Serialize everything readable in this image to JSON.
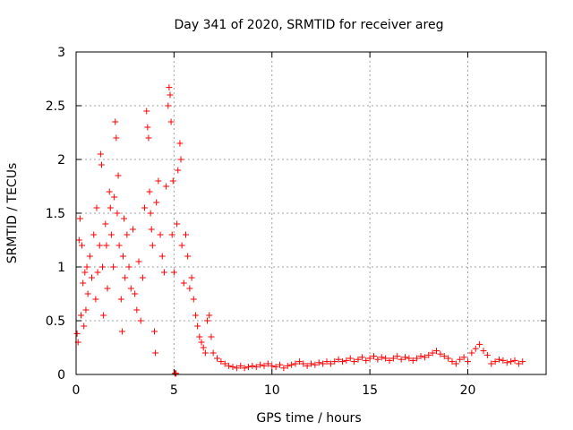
{
  "chart_data": {
    "type": "scatter",
    "title": "Day 341 of 2020, SRMTID for receiver areg",
    "xlabel": "GPS time / hours",
    "ylabel": "SRMTID / TECUs",
    "xlim": [
      0,
      24
    ],
    "ylim": [
      0,
      3
    ],
    "xticks": [
      0,
      5,
      10,
      15,
      20
    ],
    "yticks": [
      0,
      0.5,
      1,
      1.5,
      2,
      2.5,
      3
    ],
    "xtick_labels": [
      "0",
      "5",
      "10",
      "15",
      "20"
    ],
    "ytick_labels": [
      "0",
      "0.5",
      "1",
      "1.5",
      "2",
      "2.5",
      "3"
    ],
    "grid": true,
    "legend": "none",
    "series": [
      {
        "name": "SRMTID",
        "marker": "+",
        "color": "#ff0000",
        "points": [
          [
            0.05,
            0.38
          ],
          [
            0.1,
            0.3
          ],
          [
            0.15,
            1.25
          ],
          [
            0.2,
            1.45
          ],
          [
            0.25,
            0.55
          ],
          [
            0.3,
            1.2
          ],
          [
            0.35,
            0.85
          ],
          [
            0.4,
            0.45
          ],
          [
            0.45,
            0.95
          ],
          [
            0.5,
            0.6
          ],
          [
            0.55,
            1.0
          ],
          [
            0.6,
            0.75
          ],
          [
            0.7,
            1.1
          ],
          [
            0.8,
            0.9
          ],
          [
            0.9,
            1.3
          ],
          [
            1.0,
            0.7
          ],
          [
            1.05,
            1.55
          ],
          [
            1.1,
            0.95
          ],
          [
            1.2,
            1.2
          ],
          [
            1.25,
            2.05
          ],
          [
            1.3,
            1.95
          ],
          [
            1.35,
            1.0
          ],
          [
            1.4,
            0.55
          ],
          [
            1.5,
            1.4
          ],
          [
            1.55,
            1.2
          ],
          [
            1.6,
            0.8
          ],
          [
            1.7,
            1.7
          ],
          [
            1.75,
            1.55
          ],
          [
            1.8,
            1.3
          ],
          [
            1.9,
            1.0
          ],
          [
            1.95,
            1.65
          ],
          [
            2.0,
            2.35
          ],
          [
            2.05,
            2.2
          ],
          [
            2.1,
            1.5
          ],
          [
            2.15,
            1.85
          ],
          [
            2.2,
            1.2
          ],
          [
            2.3,
            0.7
          ],
          [
            2.35,
            0.4
          ],
          [
            2.4,
            1.1
          ],
          [
            2.45,
            1.45
          ],
          [
            2.5,
            0.9
          ],
          [
            2.6,
            1.3
          ],
          [
            2.7,
            1.0
          ],
          [
            2.8,
            0.8
          ],
          [
            2.9,
            1.35
          ],
          [
            3.0,
            0.75
          ],
          [
            3.1,
            0.6
          ],
          [
            3.2,
            1.05
          ],
          [
            3.3,
            0.5
          ],
          [
            3.4,
            0.9
          ],
          [
            3.5,
            1.55
          ],
          [
            3.6,
            2.45
          ],
          [
            3.65,
            2.3
          ],
          [
            3.7,
            2.2
          ],
          [
            3.75,
            1.7
          ],
          [
            3.8,
            1.5
          ],
          [
            3.85,
            1.35
          ],
          [
            3.9,
            1.2
          ],
          [
            4.0,
            0.4
          ],
          [
            4.05,
            0.2
          ],
          [
            4.1,
            1.6
          ],
          [
            4.2,
            1.8
          ],
          [
            4.3,
            1.3
          ],
          [
            4.4,
            1.1
          ],
          [
            4.5,
            0.95
          ],
          [
            4.6,
            1.75
          ],
          [
            4.7,
            2.5
          ],
          [
            4.75,
            2.67
          ],
          [
            4.8,
            2.6
          ],
          [
            4.85,
            2.35
          ],
          [
            4.9,
            1.3
          ],
          [
            4.95,
            1.8
          ],
          [
            5.0,
            0.95
          ],
          [
            5.05,
            0.01
          ],
          [
            5.1,
            0.01
          ],
          [
            5.15,
            1.4
          ],
          [
            5.2,
            1.9
          ],
          [
            5.3,
            2.15
          ],
          [
            5.35,
            2.0
          ],
          [
            5.4,
            1.2
          ],
          [
            5.5,
            0.85
          ],
          [
            5.6,
            1.3
          ],
          [
            5.7,
            1.1
          ],
          [
            5.8,
            0.8
          ],
          [
            5.9,
            0.9
          ],
          [
            6.0,
            0.7
          ],
          [
            6.1,
            0.55
          ],
          [
            6.2,
            0.45
          ],
          [
            6.3,
            0.35
          ],
          [
            6.4,
            0.3
          ],
          [
            6.5,
            0.25
          ],
          [
            6.6,
            0.2
          ],
          [
            6.7,
            0.5
          ],
          [
            6.8,
            0.55
          ],
          [
            6.9,
            0.35
          ],
          [
            7.0,
            0.2
          ],
          [
            7.2,
            0.15
          ],
          [
            7.4,
            0.12
          ],
          [
            7.6,
            0.1
          ],
          [
            7.8,
            0.08
          ],
          [
            8.0,
            0.07
          ],
          [
            8.2,
            0.06
          ],
          [
            8.4,
            0.08
          ],
          [
            8.6,
            0.06
          ],
          [
            8.8,
            0.07
          ],
          [
            9.0,
            0.08
          ],
          [
            9.2,
            0.07
          ],
          [
            9.4,
            0.09
          ],
          [
            9.6,
            0.08
          ],
          [
            9.8,
            0.1
          ],
          [
            10.0,
            0.08
          ],
          [
            10.2,
            0.07
          ],
          [
            10.4,
            0.09
          ],
          [
            10.6,
            0.06
          ],
          [
            10.8,
            0.08
          ],
          [
            11.0,
            0.09
          ],
          [
            11.2,
            0.1
          ],
          [
            11.4,
            0.12
          ],
          [
            11.6,
            0.1
          ],
          [
            11.8,
            0.08
          ],
          [
            12.0,
            0.1
          ],
          [
            12.2,
            0.09
          ],
          [
            12.4,
            0.11
          ],
          [
            12.6,
            0.1
          ],
          [
            12.8,
            0.12
          ],
          [
            13.0,
            0.1
          ],
          [
            13.2,
            0.12
          ],
          [
            13.4,
            0.14
          ],
          [
            13.6,
            0.12
          ],
          [
            13.8,
            0.13
          ],
          [
            14.0,
            0.15
          ],
          [
            14.2,
            0.12
          ],
          [
            14.4,
            0.14
          ],
          [
            14.6,
            0.16
          ],
          [
            14.8,
            0.13
          ],
          [
            15.0,
            0.15
          ],
          [
            15.2,
            0.17
          ],
          [
            15.4,
            0.14
          ],
          [
            15.6,
            0.16
          ],
          [
            15.8,
            0.15
          ],
          [
            16.0,
            0.13
          ],
          [
            16.2,
            0.15
          ],
          [
            16.4,
            0.17
          ],
          [
            16.6,
            0.14
          ],
          [
            16.8,
            0.16
          ],
          [
            17.0,
            0.15
          ],
          [
            17.2,
            0.13
          ],
          [
            17.4,
            0.15
          ],
          [
            17.6,
            0.17
          ],
          [
            17.8,
            0.16
          ],
          [
            18.0,
            0.18
          ],
          [
            18.2,
            0.2
          ],
          [
            18.4,
            0.22
          ],
          [
            18.6,
            0.19
          ],
          [
            18.8,
            0.17
          ],
          [
            19.0,
            0.15
          ],
          [
            19.2,
            0.12
          ],
          [
            19.4,
            0.1
          ],
          [
            19.6,
            0.14
          ],
          [
            19.8,
            0.16
          ],
          [
            20.0,
            0.12
          ],
          [
            20.2,
            0.2
          ],
          [
            20.4,
            0.24
          ],
          [
            20.6,
            0.28
          ],
          [
            20.8,
            0.22
          ],
          [
            21.0,
            0.18
          ],
          [
            21.2,
            0.1
          ],
          [
            21.4,
            0.12
          ],
          [
            21.6,
            0.14
          ],
          [
            21.8,
            0.13
          ],
          [
            22.0,
            0.11
          ],
          [
            22.2,
            0.12
          ],
          [
            22.4,
            0.13
          ],
          [
            22.6,
            0.1
          ],
          [
            22.8,
            0.12
          ]
        ]
      }
    ]
  }
}
